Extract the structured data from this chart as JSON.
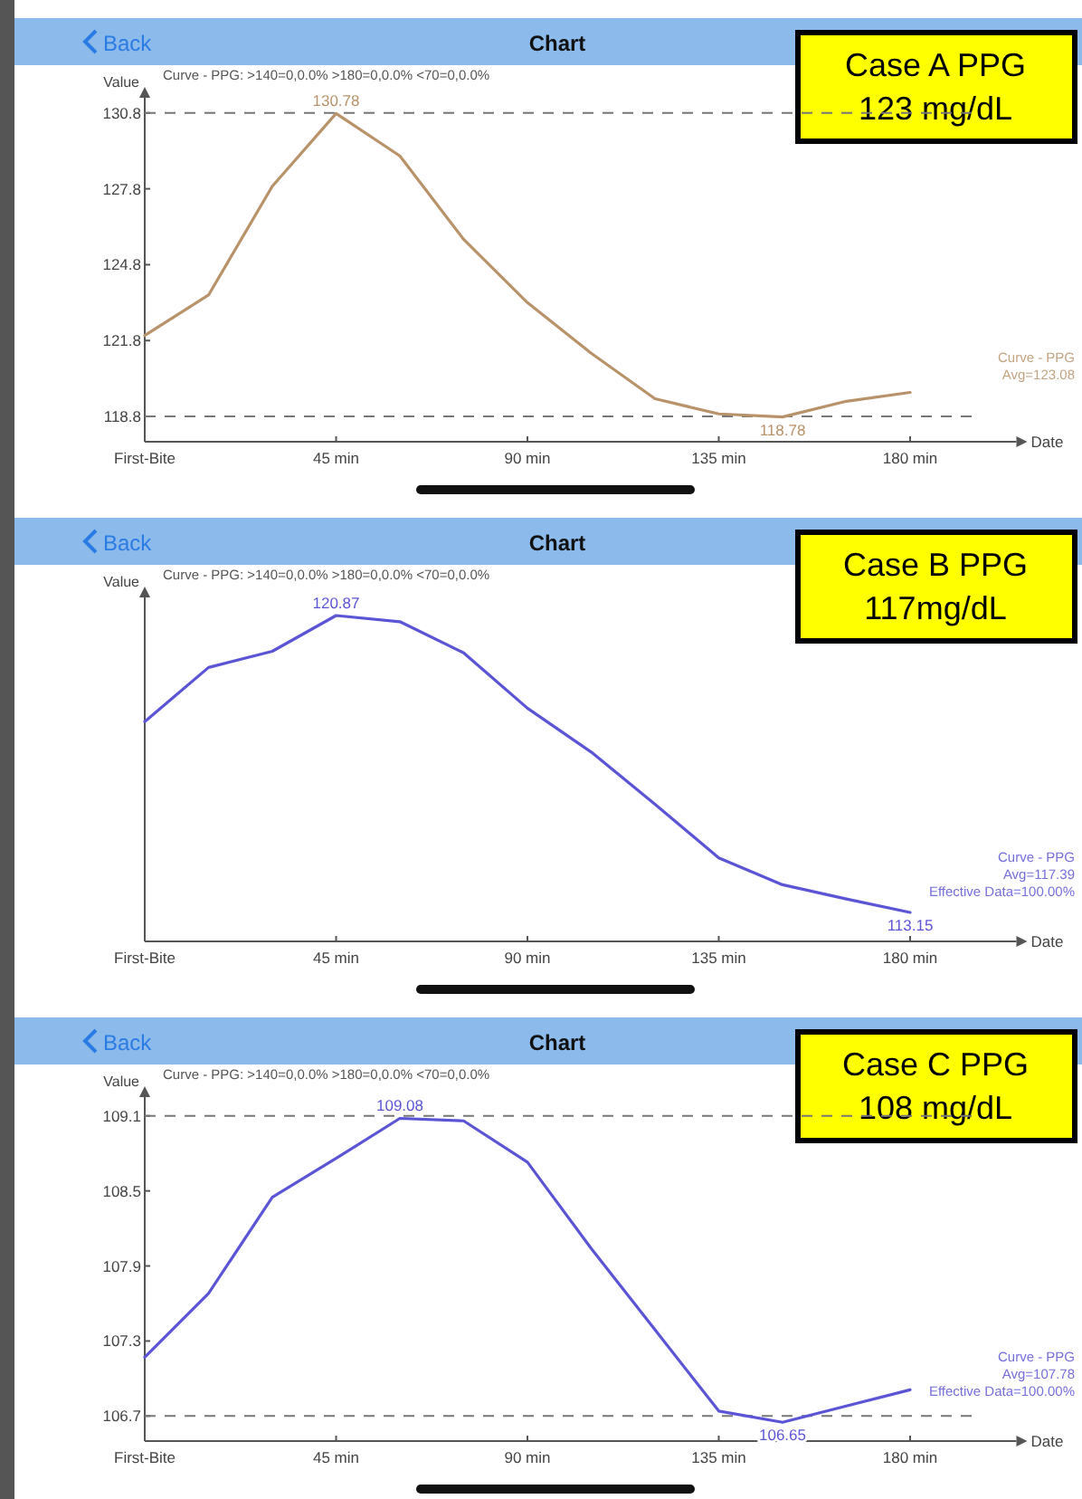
{
  "chart_data": [
    {
      "type": "line",
      "title": "Chart",
      "subtitle": "Curve - PPG: >140=0,0.0%  >180=0,0.0%  <70=0,0.0%",
      "xlabel": "Date",
      "ylabel": "Value",
      "annotations": [
        "Back",
        "Case A  PPG\n123 mg/dL",
        "Avg=123.08"
      ],
      "x": [
        0,
        15,
        30,
        45,
        60,
        75,
        90,
        105,
        120,
        135,
        150,
        165,
        180
      ],
      "series": [
        {
          "name": "Curve - PPG",
          "color": "#b8936a",
          "values": [
            122.0,
            123.6,
            127.9,
            130.78,
            129.1,
            125.8,
            123.3,
            121.3,
            119.5,
            118.9,
            118.78,
            119.4,
            119.75
          ],
          "value_labels": [
            null,
            null,
            null,
            "130.78",
            null,
            null,
            null,
            null,
            null,
            null,
            "118.78",
            null,
            null
          ]
        }
      ],
      "xlim": [
        0,
        205
      ],
      "xticks": [
        {
          "value": 0,
          "label": "First-Bite"
        },
        {
          "value": 45,
          "label": "45 min"
        },
        {
          "value": 90,
          "label": "90 min"
        },
        {
          "value": 135,
          "label": "135 min"
        },
        {
          "value": 180,
          "label": "180 min"
        }
      ],
      "ylim": [
        117.8,
        131.4
      ],
      "yticks": [
        118.8,
        121.8,
        124.8,
        127.8,
        130.8
      ],
      "ref_lines": [
        {
          "axis": "y",
          "value": 130.8,
          "color": "#777777",
          "line_style": "dashed"
        },
        {
          "axis": "y",
          "value": 118.8,
          "color": "#777777",
          "line_style": "dashed"
        }
      ],
      "grid": false,
      "marker": "none",
      "line_style": "solid"
    },
    {
      "type": "line",
      "title": "Chart",
      "subtitle": "Curve - PPG: >140=0,0.0%  >180=0,0.0%  <70=0,0.0%",
      "xlabel": "Date",
      "ylabel": "Value",
      "annotations": [
        "Back",
        "Case B  PPG\n117mg/dL",
        "Avg=117.39",
        "Effective Data=100.00%"
      ],
      "x": [
        0,
        15,
        30,
        45,
        60,
        75,
        90,
        105,
        120,
        135,
        150,
        165,
        180
      ],
      "series": [
        {
          "name": "Curve - PPG",
          "color": "#5b55d6",
          "values": [
            118.11,
            119.52,
            119.94,
            120.87,
            120.71,
            119.9,
            118.46,
            117.32,
            115.96,
            114.57,
            113.87,
            113.5,
            113.15
          ],
          "value_labels": [
            null,
            null,
            null,
            "120.87",
            null,
            null,
            null,
            null,
            null,
            null,
            null,
            null,
            "113.15"
          ]
        }
      ],
      "xlim": [
        0,
        205
      ],
      "xticks": [
        {
          "value": 0,
          "label": "First-Bite"
        },
        {
          "value": 45,
          "label": "45 min"
        },
        {
          "value": 90,
          "label": "90 min"
        },
        {
          "value": 135,
          "label": "135 min"
        },
        {
          "value": 180,
          "label": "180 min"
        }
      ],
      "tick_labels": "x",
      "grid": false,
      "marker": "none",
      "line_style": "solid"
    },
    {
      "type": "line",
      "title": "Chart",
      "subtitle": "Curve - PPG: >140=0,0.0%  >180=0,0.0%  <70=0,0.0%",
      "xlabel": "Date",
      "ylabel": "Value",
      "annotations": [
        "Back",
        "Case C  PPG\n108 mg/dL",
        "Avg=107.78",
        "Effective Data=100.00%"
      ],
      "x": [
        0,
        15,
        30,
        45,
        60,
        75,
        90,
        105,
        120,
        135,
        150,
        165,
        180
      ],
      "series": [
        {
          "name": "Curve - PPG",
          "color": "#5b55d6",
          "values": [
            107.17,
            107.68,
            108.45,
            108.76,
            109.08,
            109.06,
            108.73,
            108.04,
            107.39,
            106.74,
            106.65,
            106.78,
            106.91
          ],
          "value_labels": [
            null,
            null,
            null,
            null,
            "109.08",
            null,
            null,
            null,
            null,
            null,
            "106.65",
            null,
            null
          ]
        }
      ],
      "xlim": [
        0,
        205
      ],
      "xticks": [
        {
          "value": 0,
          "label": "First-Bite"
        },
        {
          "value": 45,
          "label": "45 min"
        },
        {
          "value": 90,
          "label": "90 min"
        },
        {
          "value": 135,
          "label": "135 min"
        },
        {
          "value": 180,
          "label": "180 min"
        }
      ],
      "ylim": [
        106.5,
        109.25
      ],
      "yticks": [
        106.7,
        107.3,
        107.9,
        108.5,
        109.1
      ],
      "ref_lines": [
        {
          "axis": "y",
          "value": 109.1,
          "color": "#777777",
          "line_style": "dashed"
        },
        {
          "axis": "y",
          "value": 106.7,
          "color": "#777777",
          "line_style": "dashed"
        }
      ],
      "grid": false,
      "marker": "none",
      "line_style": "solid"
    }
  ]
}
